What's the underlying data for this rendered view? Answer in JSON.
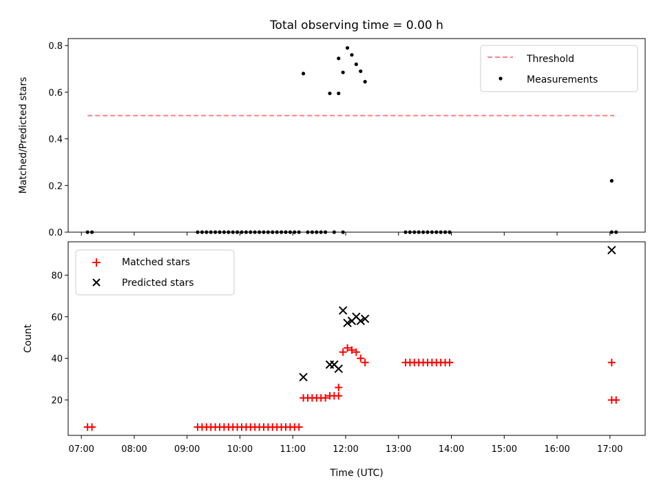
{
  "chart_data": [
    {
      "type": "scatter",
      "title": "Total observing time = 0.00 h",
      "ylabel": "Matched/Predicted stars",
      "xlabel": "",
      "xlim": [
        "06:45",
        "17:40"
      ],
      "ylim": [
        0,
        0.83
      ],
      "yticks": [
        "0.0",
        "0.2",
        "0.4",
        "0.6",
        "0.8"
      ],
      "legend_position": "top-right",
      "threshold": {
        "name": "Threshold",
        "value": 0.5,
        "x_range": [
          "07:07",
          "17:05"
        ],
        "color": "#ff7f7f",
        "style": "dashed"
      },
      "series": [
        {
          "name": "Measurements",
          "color": "#000000",
          "marker": "dot",
          "points": [
            [
              "07:07",
              0
            ],
            [
              "07:12",
              0
            ],
            [
              "09:12",
              0
            ],
            [
              "09:17",
              0
            ],
            [
              "09:22",
              0
            ],
            [
              "09:27",
              0
            ],
            [
              "09:32",
              0
            ],
            [
              "09:37",
              0
            ],
            [
              "09:42",
              0
            ],
            [
              "09:47",
              0
            ],
            [
              "09:52",
              0
            ],
            [
              "09:57",
              0
            ],
            [
              "10:02",
              0
            ],
            [
              "10:07",
              0
            ],
            [
              "10:12",
              0
            ],
            [
              "10:17",
              0
            ],
            [
              "10:22",
              0
            ],
            [
              "10:27",
              0
            ],
            [
              "10:32",
              0
            ],
            [
              "10:37",
              0
            ],
            [
              "10:42",
              0
            ],
            [
              "10:47",
              0
            ],
            [
              "10:52",
              0
            ],
            [
              "10:57",
              0
            ],
            [
              "11:02",
              0
            ],
            [
              "11:07",
              0
            ],
            [
              "11:12",
              0.68
            ],
            [
              "11:17",
              0
            ],
            [
              "11:22",
              0
            ],
            [
              "11:27",
              0
            ],
            [
              "11:32",
              0
            ],
            [
              "11:37",
              0
            ],
            [
              "11:42",
              0.595
            ],
            [
              "11:47",
              0
            ],
            [
              "11:52",
              0.595
            ],
            [
              "11:57",
              0
            ],
            [
              "11:52",
              0.745
            ],
            [
              "11:57",
              0.685
            ],
            [
              "12:02",
              0.79
            ],
            [
              "12:07",
              0.76
            ],
            [
              "12:12",
              0.72
            ],
            [
              "12:17",
              0.69
            ],
            [
              "12:22",
              0.645
            ],
            [
              "13:08",
              0
            ],
            [
              "13:13",
              0
            ],
            [
              "13:18",
              0
            ],
            [
              "13:23",
              0
            ],
            [
              "13:28",
              0
            ],
            [
              "13:33",
              0
            ],
            [
              "13:38",
              0
            ],
            [
              "13:43",
              0
            ],
            [
              "13:48",
              0
            ],
            [
              "13:53",
              0
            ],
            [
              "13:58",
              0
            ],
            [
              "17:02",
              0.22
            ],
            [
              "17:02",
              0
            ],
            [
              "17:07",
              0
            ]
          ]
        }
      ]
    },
    {
      "type": "scatter",
      "title": "",
      "ylabel": "Count",
      "xlabel": "Time (UTC)",
      "xlim": [
        "06:45",
        "17:40"
      ],
      "ylim": [
        3,
        96
      ],
      "yticks": [
        "20",
        "40",
        "60",
        "80"
      ],
      "xticks": [
        "07:00",
        "08:00",
        "09:00",
        "10:00",
        "11:00",
        "12:00",
        "13:00",
        "14:00",
        "15:00",
        "16:00",
        "17:00"
      ],
      "legend_position": "top-left",
      "series": [
        {
          "name": "Matched stars",
          "color": "#ff0000",
          "marker": "plus",
          "points": [
            [
              "07:07",
              7
            ],
            [
              "07:12",
              7
            ],
            [
              "09:12",
              7
            ],
            [
              "09:17",
              7
            ],
            [
              "09:22",
              7
            ],
            [
              "09:27",
              7
            ],
            [
              "09:32",
              7
            ],
            [
              "09:37",
              7
            ],
            [
              "09:42",
              7
            ],
            [
              "09:47",
              7
            ],
            [
              "09:52",
              7
            ],
            [
              "09:57",
              7
            ],
            [
              "10:02",
              7
            ],
            [
              "10:07",
              7
            ],
            [
              "10:12",
              7
            ],
            [
              "10:17",
              7
            ],
            [
              "10:22",
              7
            ],
            [
              "10:27",
              7
            ],
            [
              "10:32",
              7
            ],
            [
              "10:37",
              7
            ],
            [
              "10:42",
              7
            ],
            [
              "10:47",
              7
            ],
            [
              "10:52",
              7
            ],
            [
              "10:57",
              7
            ],
            [
              "11:02",
              7
            ],
            [
              "11:07",
              7
            ],
            [
              "11:12",
              21
            ],
            [
              "11:17",
              21
            ],
            [
              "11:22",
              21
            ],
            [
              "11:27",
              21
            ],
            [
              "11:32",
              21
            ],
            [
              "11:37",
              21
            ],
            [
              "11:42",
              22
            ],
            [
              "11:47",
              22
            ],
            [
              "11:52",
              22
            ],
            [
              "11:52",
              26
            ],
            [
              "11:57",
              43
            ],
            [
              "12:02",
              45
            ],
            [
              "12:07",
              44
            ],
            [
              "12:12",
              43
            ],
            [
              "12:17",
              40
            ],
            [
              "12:22",
              38
            ],
            [
              "13:08",
              38
            ],
            [
              "13:13",
              38
            ],
            [
              "13:18",
              38
            ],
            [
              "13:23",
              38
            ],
            [
              "13:28",
              38
            ],
            [
              "13:33",
              38
            ],
            [
              "13:38",
              38
            ],
            [
              "13:43",
              38
            ],
            [
              "13:48",
              38
            ],
            [
              "13:53",
              38
            ],
            [
              "13:58",
              38
            ],
            [
              "17:02",
              38
            ],
            [
              "17:02",
              20
            ],
            [
              "17:07",
              20
            ]
          ]
        },
        {
          "name": "Predicted stars",
          "color": "#000000",
          "marker": "x",
          "points": [
            [
              "11:12",
              31
            ],
            [
              "11:42",
              37
            ],
            [
              "11:47",
              37
            ],
            [
              "11:52",
              35
            ],
            [
              "11:57",
              63
            ],
            [
              "12:02",
              57
            ],
            [
              "12:07",
              58
            ],
            [
              "12:12",
              60
            ],
            [
              "12:17",
              58
            ],
            [
              "12:22",
              59
            ],
            [
              "17:02",
              92
            ]
          ]
        }
      ]
    }
  ]
}
